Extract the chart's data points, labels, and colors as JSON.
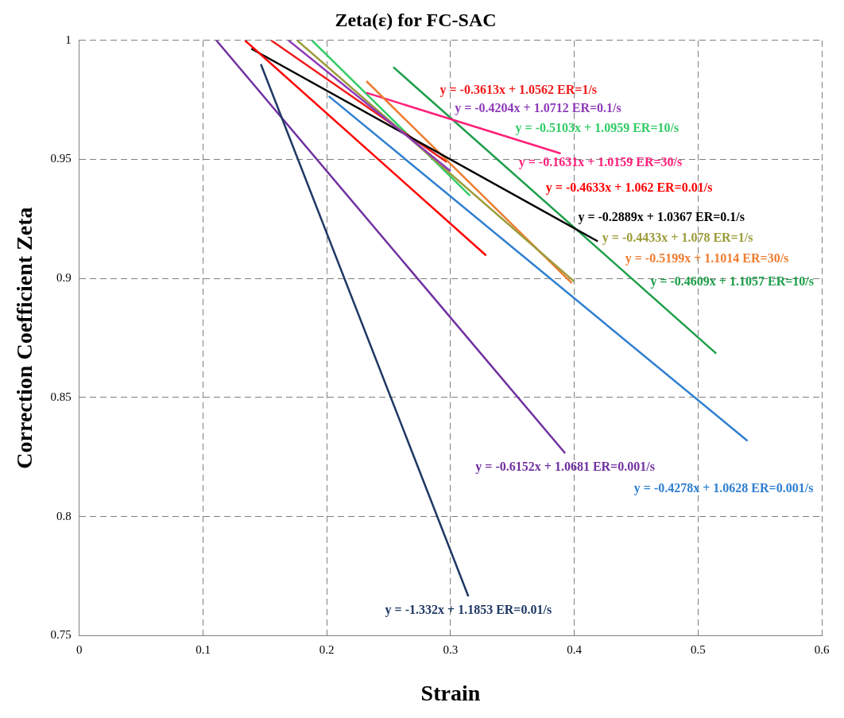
{
  "chart_data": {
    "type": "line",
    "title": "Zeta(ε) for FC-SAC",
    "xlabel": "Strain",
    "ylabel": "Correction Coefficient Zeta",
    "xlim": [
      0,
      0.6
    ],
    "xticks": [
      0,
      0.1,
      0.2,
      0.3,
      0.4,
      0.5,
      0.6
    ],
    "ylim": [
      0.75,
      1
    ],
    "yticks": [
      0.75,
      0.8,
      0.85,
      0.9,
      0.95,
      1
    ],
    "grid": true,
    "legend": false,
    "marker": "none",
    "line_style": "solid",
    "series": [
      {
        "name": "y = -1.332x + 1.1853 ER=0.01/s",
        "color": "#1f3864",
        "x": [
          0.1467,
          0.3144
        ],
        "values": [
          0.99,
          0.7665
        ]
      },
      {
        "name": "y = -0.6152x + 1.0681 ER=0.001/s",
        "color": "#7030a0",
        "x": [
          0.1107,
          0.3926
        ],
        "values": [
          1.0,
          0.8266
        ]
      },
      {
        "name": "y = -0.4278x + 1.0628 ER=0.001/s",
        "color": "#2e7fd0",
        "x": [
          0.2015,
          0.54
        ],
        "values": [
          0.9766,
          0.8318
        ]
      },
      {
        "name": "y = -0.4204x + 1.0712 ER=0.1/s",
        "color": "#8e3ab8",
        "x": [
          0.169,
          0.3
        ],
        "values": [
          1.0,
          0.9451
        ]
      },
      {
        "name": "y = -0.4633x + 1.062 ER=0.01/s",
        "color": "#ff0000",
        "x": [
          0.1338,
          0.3287
        ],
        "values": [
          1.0,
          0.9097
        ]
      },
      {
        "name": "y = -0.2889x + 1.0367 ER=0.1/s",
        "color": "#000000",
        "x": [
          0.139,
          0.419
        ],
        "values": [
          0.9965,
          0.9156
        ]
      },
      {
        "name": "y = -0.4433x + 1.078 ER=1/s",
        "color": "#9b9b3a",
        "x": [
          0.176,
          0.4
        ],
        "values": [
          1.0,
          0.8987
        ]
      },
      {
        "name": "y = -0.5199x + 1.1014 ER=30/s",
        "color": "#ed7d31",
        "x": [
          0.232,
          0.398
        ],
        "values": [
          0.9829,
          0.898
        ]
      },
      {
        "name": "y = -0.1631x + 1.0159 ER=30/s",
        "color": "#ff1f7a",
        "x": [
          0.232,
          0.389
        ],
        "values": [
          0.978,
          0.9525
        ]
      },
      {
        "name": "y = -0.3613x + 1.0562 ER=1/s",
        "color": "#f21a1a",
        "x": [
          0.155,
          0.297
        ],
        "values": [
          1.0,
          0.9489
        ]
      },
      {
        "name": "y = -0.5103x + 1.0959 ER=10/s",
        "color": "#33cc66",
        "x": [
          0.188,
          0.3157
        ],
        "values": [
          1.0,
          0.9348
        ]
      },
      {
        "name": "y = -0.4609x + 1.1057 ER=10/s",
        "color": "#1e9e4a",
        "x": [
          0.2537,
          0.5147
        ],
        "values": [
          0.9888,
          0.8685
        ]
      }
    ]
  }
}
